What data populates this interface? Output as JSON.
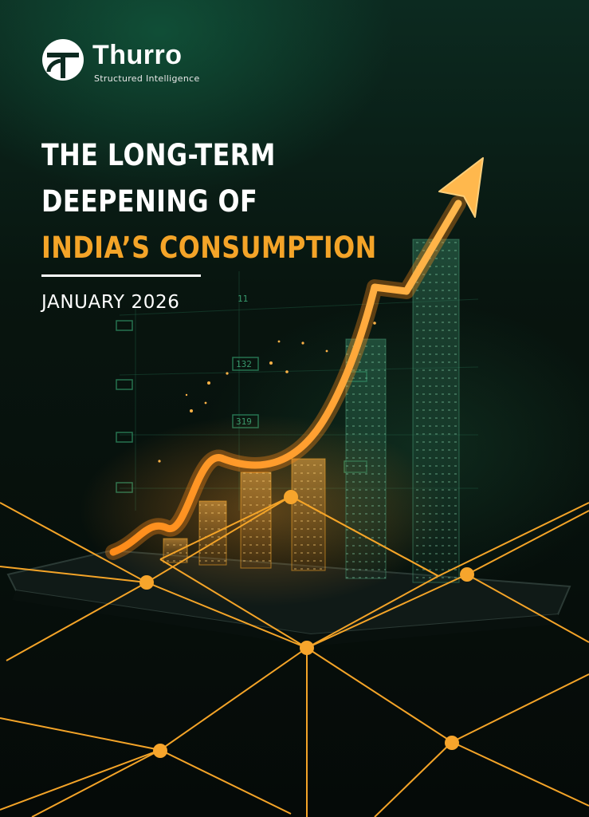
{
  "brand": {
    "name": "Thurro",
    "tagline": "Structured Intelligence"
  },
  "title": {
    "line1": "THE LONG-TERM",
    "line2": "DEEPENING OF",
    "line3": "INDIA’S CONSUMPTION"
  },
  "date": "JANUARY 2026",
  "illustration": {
    "labels": [
      "11",
      "132",
      "319"
    ],
    "colors": {
      "accent": "#f4a428",
      "line": "#e8961f",
      "glow": "#ffb347",
      "green": "#1f7a55"
    }
  }
}
